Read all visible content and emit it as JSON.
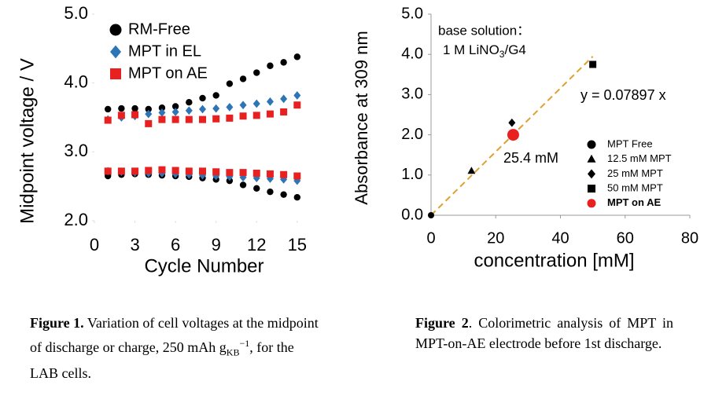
{
  "chart_data": [
    {
      "type": "scatter",
      "x_label": "Cycle Number",
      "y_label": "Midpoint voltage / V",
      "caption_label": "Figure 1.",
      "caption_parts": [
        "Variation of cell voltages at the midpoint of discharge or charge, 250 mAh g",
        "KB",
        "−1",
        ", for the LAB cells."
      ],
      "x": [
        1,
        2,
        3,
        4,
        5,
        6,
        7,
        8,
        9,
        10,
        11,
        12,
        13,
        14,
        15
      ],
      "xlim": [
        0,
        16
      ],
      "xticks": [
        0,
        3,
        6,
        9,
        12,
        15
      ],
      "ylim": [
        2,
        5
      ],
      "yticks": [
        {
          "value": 2,
          "label": "2.0"
        },
        {
          "value": 3,
          "label": "3.0"
        },
        {
          "value": 4,
          "label": "4.0"
        },
        {
          "value": 5,
          "label": "5.0"
        }
      ],
      "series": [
        {
          "name": "RM-Free",
          "color": "#000000",
          "marker": "circle",
          "charge": [
            3.62,
            3.63,
            3.63,
            3.62,
            3.64,
            3.66,
            3.72,
            3.78,
            3.82,
            3.99,
            4.06,
            4.15,
            4.25,
            4.3,
            4.38
          ],
          "discharge": [
            2.65,
            2.67,
            2.68,
            2.67,
            2.66,
            2.65,
            2.64,
            2.62,
            2.6,
            2.58,
            2.52,
            2.47,
            2.42,
            2.38,
            2.34
          ]
        },
        {
          "name": "MPT in EL",
          "color": "#2e75b6",
          "marker": "diamond",
          "charge": [
            3.47,
            3.5,
            3.52,
            3.55,
            3.57,
            3.58,
            3.6,
            3.62,
            3.63,
            3.65,
            3.68,
            3.7,
            3.73,
            3.77,
            3.82
          ],
          "discharge": [
            2.72,
            2.71,
            2.7,
            2.69,
            2.69,
            2.68,
            2.67,
            2.66,
            2.65,
            2.64,
            2.63,
            2.62,
            2.61,
            2.6,
            2.58
          ]
        },
        {
          "name": "MPT on AE",
          "color": "#e82020",
          "marker": "square",
          "charge": [
            3.46,
            3.53,
            3.54,
            3.41,
            3.47,
            3.47,
            3.47,
            3.47,
            3.48,
            3.49,
            3.52,
            3.53,
            3.55,
            3.58,
            3.68
          ],
          "discharge": [
            2.72,
            2.72,
            2.72,
            2.73,
            2.74,
            2.73,
            2.72,
            2.72,
            2.71,
            2.7,
            2.7,
            2.69,
            2.68,
            2.67,
            2.65
          ]
        }
      ]
    },
    {
      "type": "scatter",
      "x_label": "concentration [mM]",
      "y_label": "Absorbance at 309 nm",
      "caption_label": "Figure 2",
      "caption_parts": [
        ". Colorimetric analysis of MPT in MPT-on-AE electrode before 1st discharge."
      ],
      "annotations": {
        "base": "base solution：",
        "solution_parts": [
          "1 M LiNO",
          "3",
          "/G4"
        ],
        "point_label": "25.4 mM"
      },
      "fit": {
        "slope": 0.07897,
        "label": "y = 0.07897 x",
        "color": "#e0a030"
      },
      "xlim": [
        0,
        80
      ],
      "xticks": [
        0,
        20,
        40,
        60,
        80
      ],
      "ylim": [
        0,
        5
      ],
      "yticks": [
        {
          "value": 0,
          "label": "0.0"
        },
        {
          "value": 1,
          "label": "1.0"
        },
        {
          "value": 2,
          "label": "2.0"
        },
        {
          "value": 3,
          "label": "3.0"
        },
        {
          "value": 4,
          "label": "4.0"
        },
        {
          "value": 5,
          "label": "5.0"
        }
      ],
      "series": [
        {
          "name": "MPT Free",
          "color": "#000000",
          "marker": "circle",
          "x": [
            0
          ],
          "values": [
            0
          ]
        },
        {
          "name": "12.5 mM MPT",
          "color": "#000000",
          "marker": "triangle",
          "x": [
            12.5
          ],
          "values": [
            1.1
          ]
        },
        {
          "name": "25 mM MPT",
          "color": "#000000",
          "marker": "diamond",
          "x": [
            25
          ],
          "values": [
            2.3
          ]
        },
        {
          "name": "50 mM MPT",
          "color": "#000000",
          "marker": "square",
          "x": [
            50
          ],
          "values": [
            3.75
          ]
        },
        {
          "name": "MPT on AE",
          "color": "#e82020",
          "marker": "circle",
          "x": [
            25.4
          ],
          "values": [
            2.0
          ]
        }
      ]
    }
  ]
}
